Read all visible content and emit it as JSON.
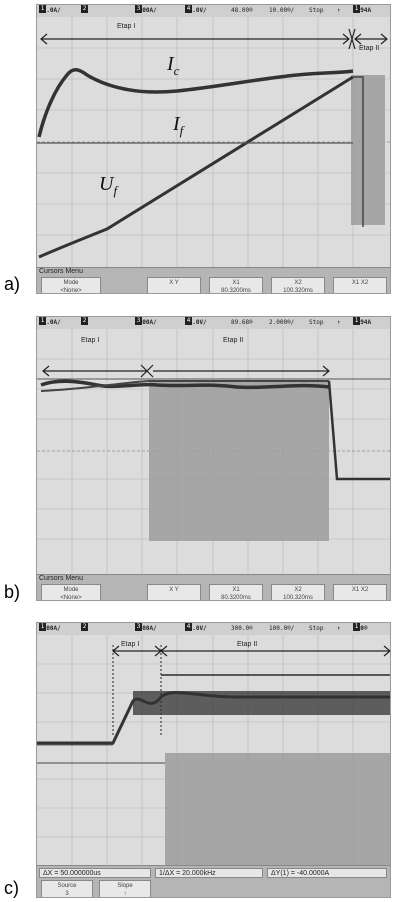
{
  "panels": [
    {
      "label": "a)",
      "status": {
        "ch1": "10.0A/",
        "ch2": "5.00A/",
        "ch3": "50.0V/",
        "delay": "48.00®",
        "timebase": "10.00®/",
        "run": "Stop",
        "trig": "3.94A"
      },
      "etap1": "Etap I",
      "etap2": "Etap II",
      "menu_title": "Cursors Menu",
      "softkeys": [
        "Mode\n<None>",
        "X    Y",
        "X1\n80.3200ms",
        "X2\n100.320ms",
        "X1 X2"
      ],
      "annotations": {
        "ic": "I",
        "ic_sub": "c",
        "if": "I",
        "if_sub": "f",
        "uf": "U",
        "uf_sub": "f"
      }
    },
    {
      "label": "b)",
      "status": {
        "ch1": "10.0A/",
        "ch2": "5.00A/",
        "ch3": "50.0V/",
        "delay": "89.68®",
        "timebase": "2.000®/",
        "run": "Stop",
        "trig": "3.94A"
      },
      "etap1": "Etap I",
      "etap2": "Etap II",
      "menu_title": "Cursors Menu",
      "softkeys": [
        "Mode\n<None>",
        "X    Y",
        "X1\n80.3200ms",
        "X2\n100.320ms",
        "X1 X2"
      ]
    },
    {
      "label": "c)",
      "status": {
        "ch1": "5.00A/",
        "ch2": "1.00A/",
        "ch3": "50.0V/",
        "delay": "300.0®",
        "timebase": "100.0®/",
        "run": "Stop",
        "trig": "850®"
      },
      "etap1": "Etap I",
      "etap2": "Etap II",
      "measurements": [
        "ΔX = 50.000000us",
        "1/ΔX = 20.000kHz",
        "ΔY(1) = -40.0000A"
      ],
      "softkeys": [
        "Source\n3",
        "Slope\n↑"
      ]
    }
  ]
}
